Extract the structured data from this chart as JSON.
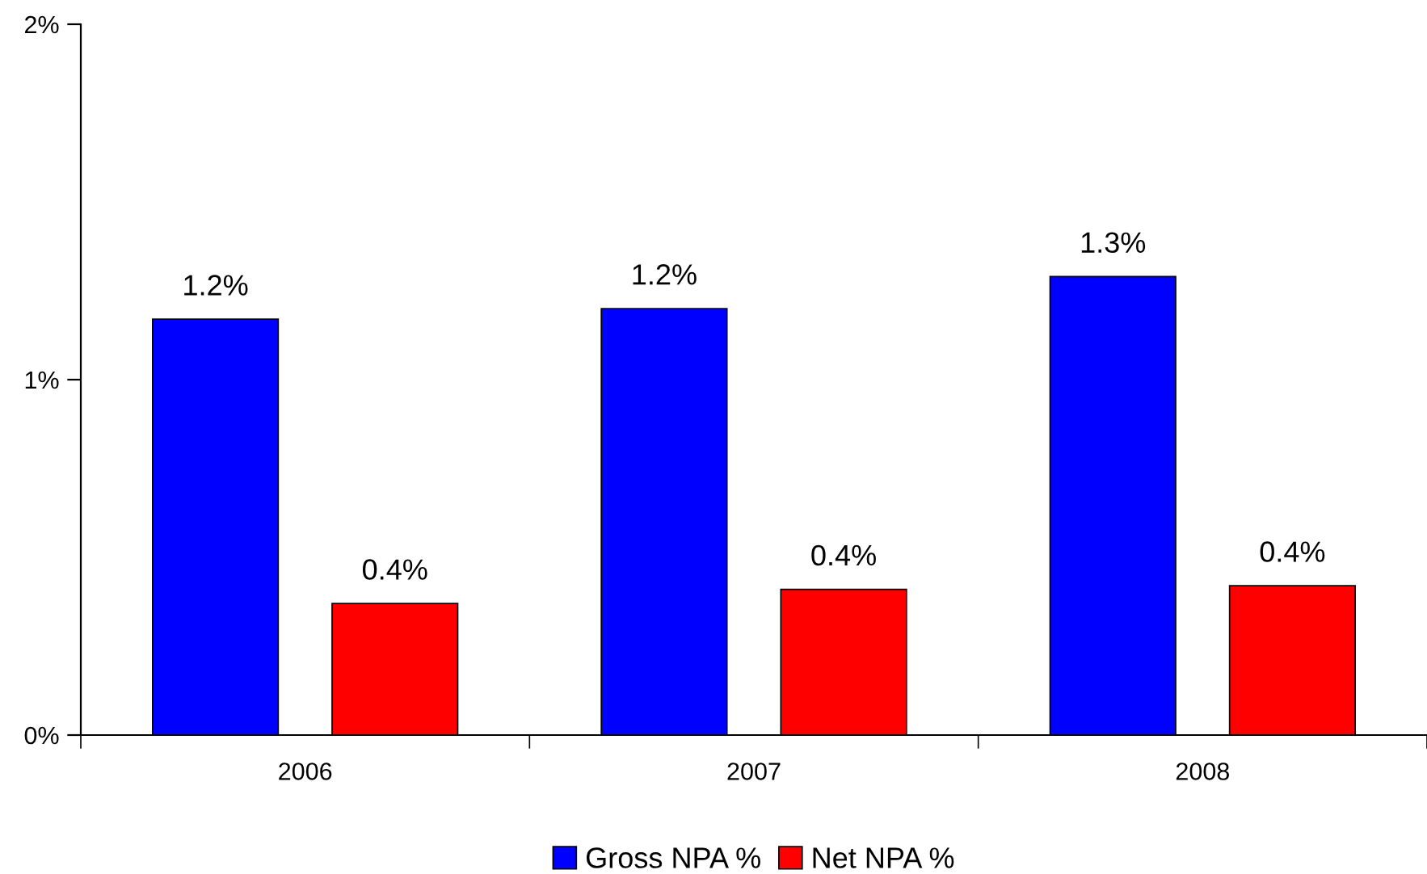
{
  "chart_data": {
    "type": "bar",
    "categories": [
      "2006",
      "2007",
      "2008"
    ],
    "series": [
      {
        "name": "Gross NPA %",
        "color": "#0000ff",
        "values": [
          1.17,
          1.2,
          1.29
        ],
        "value_labels": [
          "1.2%",
          "1.2%",
          "1.3%"
        ]
      },
      {
        "name": "Net NPA %",
        "color": "#ff0000",
        "values": [
          0.37,
          0.41,
          0.42
        ],
        "value_labels": [
          "0.4%",
          "0.4%",
          "0.4%"
        ]
      }
    ],
    "ylim": [
      0,
      2
    ],
    "yticks": [
      {
        "value": 0,
        "label": "0%"
      },
      {
        "value": 1,
        "label": "1%"
      },
      {
        "value": 2,
        "label": "2%"
      }
    ],
    "grid": false,
    "legend": "bottom"
  }
}
